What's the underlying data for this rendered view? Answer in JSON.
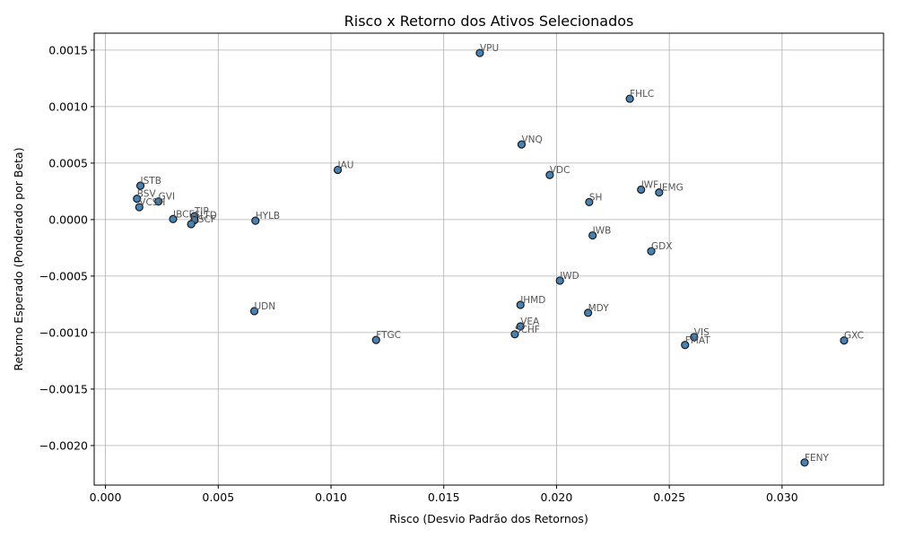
{
  "chart_data": {
    "type": "scatter",
    "title": "Risco x Retorno dos Ativos Selecionados",
    "xlabel": "Risco (Desvio Padrão dos Retornos)",
    "ylabel": "Retorno Esperado (Ponderado por Beta)",
    "xlim": [
      -0.0005,
      0.0345
    ],
    "ylim": [
      -0.00235,
      0.00165
    ],
    "grid": true,
    "xticks": [
      0.0,
      0.005,
      0.01,
      0.015,
      0.02,
      0.025,
      0.03
    ],
    "xtick_labels": [
      "0.000",
      "0.005",
      "0.010",
      "0.015",
      "0.020",
      "0.025",
      "0.030"
    ],
    "yticks": [
      0.0015,
      0.001,
      0.0005,
      0.0,
      -0.0005,
      -0.001,
      -0.0015,
      -0.002
    ],
    "ytick_labels": [
      "0.0015",
      "0.0010",
      "0.0005",
      "0.0000",
      "−0.0005",
      "−0.0010",
      "−0.0015",
      "−0.0020"
    ],
    "marker_color": "#4682b4",
    "points": [
      {
        "label": "VPU",
        "x": 0.0166,
        "y": 0.001475
      },
      {
        "label": "FHLC",
        "x": 0.02325,
        "y": 0.00107
      },
      {
        "label": "VNQ",
        "x": 0.01845,
        "y": 0.000665
      },
      {
        "label": "IAU",
        "x": 0.0103,
        "y": 0.00044
      },
      {
        "label": "VDC",
        "x": 0.0197,
        "y": 0.000395
      },
      {
        "label": "ISTB",
        "x": 0.00155,
        "y": 0.0003
      },
      {
        "label": "IWF",
        "x": 0.02375,
        "y": 0.000265
      },
      {
        "label": "IEMG",
        "x": 0.02455,
        "y": 0.00024
      },
      {
        "label": "BSV",
        "x": 0.0014,
        "y": 0.000185
      },
      {
        "label": "GVI",
        "x": 0.00235,
        "y": 0.00016
      },
      {
        "label": "SH",
        "x": 0.02145,
        "y": 0.000155
      },
      {
        "label": "VCSH",
        "x": 0.0015,
        "y": 0.00011
      },
      {
        "label": "IBCE",
        "x": 0.003,
        "y": 5e-06
      },
      {
        "label": "TIP",
        "x": 0.00395,
        "y": 3e-05
      },
      {
        "label": "FLTD",
        "x": 0.00395,
        "y": -5e-06
      },
      {
        "label": "USCF",
        "x": 0.0038,
        "y": -4e-05
      },
      {
        "label": "HYLB",
        "x": 0.00665,
        "y": -1e-05
      },
      {
        "label": "IWB",
        "x": 0.0216,
        "y": -0.00014
      },
      {
        "label": "GDX",
        "x": 0.0242,
        "y": -0.00028
      },
      {
        "label": "IWD",
        "x": 0.02015,
        "y": -0.00054
      },
      {
        "label": "IHMD",
        "x": 0.0184,
        "y": -0.000755
      },
      {
        "label": "UDN",
        "x": 0.0066,
        "y": -0.00081
      },
      {
        "label": "MDY",
        "x": 0.0214,
        "y": -0.000825
      },
      {
        "label": "VEA",
        "x": 0.0184,
        "y": -0.000945
      },
      {
        "label": "SCHF",
        "x": 0.01815,
        "y": -0.001015
      },
      {
        "label": "VIS",
        "x": 0.0261,
        "y": -0.00104
      },
      {
        "label": "FTGC",
        "x": 0.012,
        "y": -0.001065
      },
      {
        "label": "FMAT",
        "x": 0.0257,
        "y": -0.00111
      },
      {
        "label": "GXC",
        "x": 0.03275,
        "y": -0.00107
      },
      {
        "label": "FENY",
        "x": 0.031,
        "y": -0.00215
      }
    ]
  }
}
